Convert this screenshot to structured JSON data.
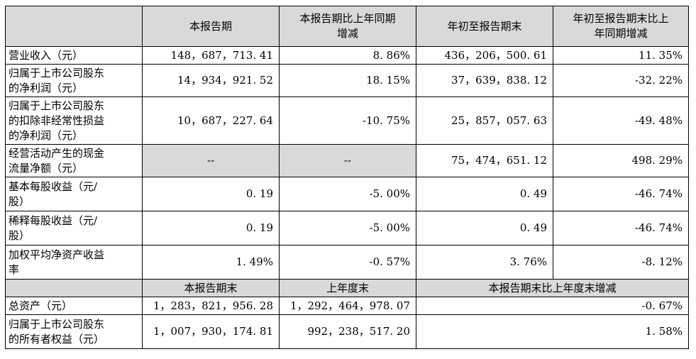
{
  "header": [
    "",
    "本报告期",
    "本报告期比上年同期\n增减",
    "年初至报告期末",
    "年初至报告期末比上\n年同期增减"
  ],
  "rows": [
    {
      "label": "营业收入（元）",
      "values": [
        "148，687，713. 41",
        "8. 86%",
        "436，206，500. 61",
        "11. 35%"
      ]
    },
    {
      "label": "归属于上市公司股东\n的净利润（元）",
      "values": [
        "14，934，921. 52",
        "18. 15%",
        "37，639，838. 12",
        "-32. 22%"
      ]
    },
    {
      "label": "归属于上市公司股东\n的扣除非经常性损益\n的净利润（元）",
      "values": [
        "10，687，227. 64",
        "-10. 75%",
        "25，857，057. 63",
        "-49. 48%"
      ]
    },
    {
      "label": "经营活动产生的现金\n流量净额（元）",
      "values": [
        "--",
        "--",
        "75，474，651. 12",
        "498. 29%"
      ]
    },
    {
      "label": "基本每股收益（元/\n股）",
      "values": [
        "0. 19",
        "-5. 00%",
        "0. 49",
        "-46. 74%"
      ]
    },
    {
      "label": "稀释每股收益（元/\n股）",
      "values": [
        "0. 19",
        "-5. 00%",
        "0. 49",
        "-46. 74%"
      ]
    },
    {
      "label": "加权平均净资产收益\n率",
      "values": [
        "1. 49%",
        "-0. 57%",
        "3. 76%",
        "-8. 12%"
      ]
    }
  ],
  "header2": [
    "",
    "本报告期末",
    "上年度末",
    "本报告期末比上年度末增减"
  ],
  "rows2": [
    {
      "label": "总资产（元）",
      "values": [
        "1，283，821，956. 28",
        "1，292，464，978. 07",
        "-0. 67%"
      ]
    },
    {
      "label": "归属于上市公司股东\n的所有者权益（元）",
      "values": [
        "1，007，930，174. 81",
        "992，238，517. 20",
        "1. 58%"
      ]
    }
  ]
}
